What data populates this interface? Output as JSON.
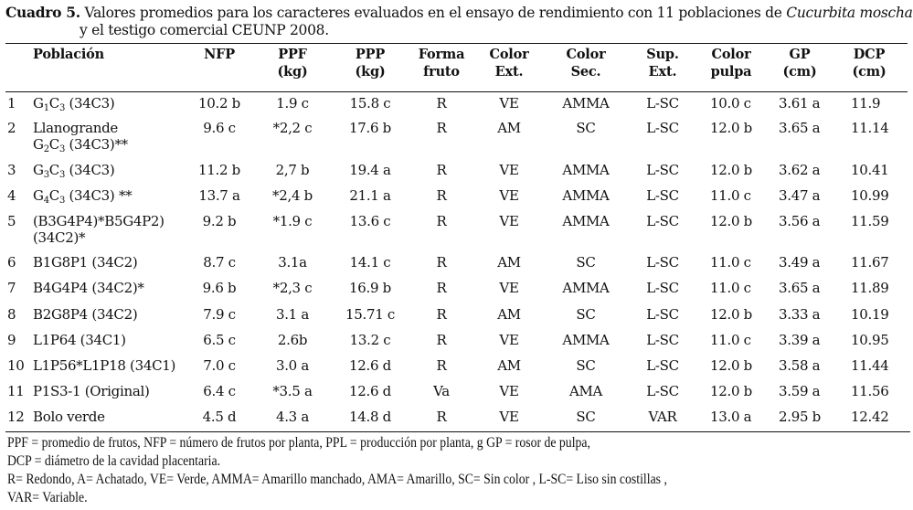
{
  "caption": {
    "label": "Cuadro 5.",
    "text_1": "Valores promedios para los caracteres evaluados en el  ensayo de rendimiento con 11 poblaciones de ",
    "species": "Cucurbita moschata",
    "text_2": "y el testigo comercial CEUNP 2008."
  },
  "headers": [
    {
      "l1": "Población",
      "l2": ""
    },
    {
      "l1": "NFP",
      "l2": ""
    },
    {
      "l1": "PPF",
      "l2": "(kg)"
    },
    {
      "l1": "PPP",
      "l2": "(kg)"
    },
    {
      "l1": "Forma",
      "l2": "fruto"
    },
    {
      "l1": "Color",
      "l2": "Ext."
    },
    {
      "l1": "Color",
      "l2": "Sec."
    },
    {
      "l1": "Sup.",
      "l2": "Ext."
    },
    {
      "l1": "Color",
      "l2": "pulpa"
    },
    {
      "l1": "GP",
      "l2": "(cm)"
    },
    {
      "l1": "DCP",
      "l2": "(cm)"
    }
  ],
  "rows": [
    {
      "n": "1",
      "name": [
        {
          "t": "G"
        },
        {
          "t": "1",
          "sub": true
        },
        {
          "t": "C"
        },
        {
          "t": "3",
          "sub": true
        },
        {
          "t": " (34C3)"
        }
      ],
      "name2": [],
      "nfp": "10.2 b",
      "ppf": "1.9 c",
      "ppp": "15.8 c",
      "forma": "R",
      "cext": "VE",
      "csec": "AMMA",
      "sup": "L-SC",
      "pulpa": "10.0 c",
      "gp": "3.61 a",
      "dcp": "11.9"
    },
    {
      "n": "2",
      "name": [
        {
          "t": "Llanogrande"
        }
      ],
      "name2": [
        {
          "t": "G"
        },
        {
          "t": "2",
          "sub": true
        },
        {
          "t": "C"
        },
        {
          "t": "3",
          "sub": true
        },
        {
          "t": " (34C3)**"
        }
      ],
      "nfp": "9.6 c",
      "ppf": "*2,2 c",
      "ppp": "17.6 b",
      "forma": "R",
      "cext": "AM",
      "csec": "SC",
      "sup": "L-SC",
      "pulpa": "12.0 b",
      "gp": "3.65 a",
      "dcp": "11.14"
    },
    {
      "n": "3",
      "name": [
        {
          "t": "G"
        },
        {
          "t": "3",
          "sub": true
        },
        {
          "t": "C"
        },
        {
          "t": "3",
          "sub": true
        },
        {
          "t": " (34C3)"
        }
      ],
      "name2": [],
      "nfp": "11.2 b",
      "ppf": "2,7 b",
      "ppp": "19.4 a",
      "forma": "R",
      "cext": "VE",
      "csec": "AMMA",
      "sup": "L-SC",
      "pulpa": "12.0 b",
      "gp": "3.62 a",
      "dcp": "10.41"
    },
    {
      "n": "4",
      "name": [
        {
          "t": "G"
        },
        {
          "t": "4",
          "sub": true
        },
        {
          "t": "C"
        },
        {
          "t": "3",
          "sub": true
        },
        {
          "t": " (34C3) **"
        }
      ],
      "name2": [],
      "nfp": "13.7 a",
      "ppf": "*2,4 b",
      "ppp": "21.1 a",
      "forma": "R",
      "cext": "VE",
      "csec": "AMMA",
      "sup": "L-SC",
      "pulpa": "11.0 c",
      "gp": "3.47 a",
      "dcp": "10.99"
    },
    {
      "n": "5",
      "name": [
        {
          "t": "(B3G4P4)*B5G4P2)"
        }
      ],
      "name2": [
        {
          "t": "(34C2)*"
        }
      ],
      "nfp": "9.2 b",
      "ppf": "*1.9 c",
      "ppp": "13.6 c",
      "forma": "R",
      "cext": "VE",
      "csec": "AMMA",
      "sup": "L-SC",
      "pulpa": "12.0 b",
      "gp": "3.56 a",
      "dcp": "11.59"
    },
    {
      "n": "6",
      "name": [
        {
          "t": "B1G8P1 (34C2)"
        }
      ],
      "name2": [],
      "nfp": "8.7 c",
      "ppf": "3.1a",
      "ppp": "14.1 c",
      "forma": "R",
      "cext": "AM",
      "csec": "SC",
      "sup": "L-SC",
      "pulpa": "11.0 c",
      "gp": "3.49 a",
      "dcp": "11.67"
    },
    {
      "n": "7",
      "name": [
        {
          "t": "B4G4P4 (34C2)*"
        }
      ],
      "name2": [],
      "nfp": "9.6 b",
      "ppf": "*2,3 c",
      "ppp": "16.9 b",
      "forma": "R",
      "cext": "VE",
      "csec": "AMMA",
      "sup": "L-SC",
      "pulpa": "11.0 c",
      "gp": "3.65 a",
      "dcp": "11.89"
    },
    {
      "n": "8",
      "name": [
        {
          "t": "B2G8P4 (34C2)"
        }
      ],
      "name2": [],
      "nfp": "7.9 c",
      "ppf": "3.1 a",
      "ppp": "15.71 c",
      "forma": "R",
      "cext": "AM",
      "csec": "SC",
      "sup": "L-SC",
      "pulpa": "12.0 b",
      "gp": "3.33 a",
      "dcp": "10.19"
    },
    {
      "n": "9",
      "name": [
        {
          "t": "L1P64 (34C1)"
        }
      ],
      "name2": [],
      "nfp": "6.5 c",
      "ppf": "2.6b",
      "ppp": "13.2 c",
      "forma": "R",
      "cext": "VE",
      "csec": "AMMA",
      "sup": "L-SC",
      "pulpa": "11.0 c",
      "gp": "3.39 a",
      "dcp": "10.95"
    },
    {
      "n": "10",
      "name": [
        {
          "t": "L1P56*L1P18 (34C1)"
        }
      ],
      "name2": [],
      "nfp": "7.0 c",
      "ppf": "3.0 a",
      "ppp": "12.6 d",
      "forma": "R",
      "cext": "AM",
      "csec": "SC",
      "sup": "L-SC",
      "pulpa": "12.0 b",
      "gp": "3.58 a",
      "dcp": "11.44"
    },
    {
      "n": "11",
      "name": [
        {
          "t": "P1S3-1 (Original)"
        }
      ],
      "name2": [],
      "nfp": "6.4 c",
      "ppf": "*3.5 a",
      "ppp": "12.6 d",
      "forma": "Va",
      "cext": "VE",
      "csec": "AMA",
      "sup": "L-SC",
      "pulpa": "12.0 b",
      "gp": "3.59 a",
      "dcp": "11.56"
    },
    {
      "n": "12",
      "name": [
        {
          "t": "Bolo verde"
        }
      ],
      "name2": [],
      "nfp": "4.5 d",
      "ppf": "4.3 a",
      "ppp": "14.8 d",
      "forma": "R",
      "cext": "VE",
      "csec": "SC",
      "sup": "VAR",
      "pulpa": "13.0 a",
      "gp": "2.95 b",
      "dcp": "12.42"
    }
  ],
  "footnotes": [
    "PPF = promedio de frutos, NFP = número de frutos por planta, PPL = producción por planta, g GP = rosor de pulpa,",
    "DCP = diámetro de la cavidad placentaria.",
    "R= Redondo, A= Achatado, VE= Verde, AMMA= Amarillo manchado, AMA= Amarillo, SC= Sin color , L-SC= Liso sin costillas ,",
    "VAR= Variable."
  ]
}
